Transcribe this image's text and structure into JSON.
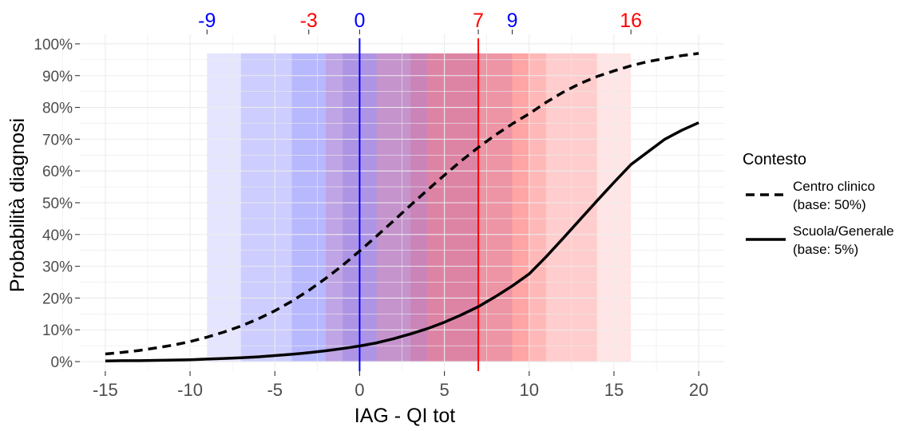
{
  "chart_data": {
    "type": "line",
    "xlabel": "IAG - QI tot",
    "ylabel": "Probabilità diagnosi",
    "xlim": [
      -16.5,
      21.5
    ],
    "ylim": [
      -0.03,
      1.03
    ],
    "xticks": [
      -15,
      -10,
      -5,
      0,
      5,
      10,
      15,
      20
    ],
    "yticks": [
      0,
      0.1,
      0.2,
      0.3,
      0.4,
      0.5,
      0.6,
      0.7,
      0.8,
      0.9,
      1.0
    ],
    "ytick_labels": [
      "0%",
      "10%",
      "20%",
      "30%",
      "40%",
      "50%",
      "60%",
      "70%",
      "80%",
      "90%",
      "100%"
    ],
    "grid": true,
    "colors": {
      "blue": "#0000ff",
      "red": "#ff0000",
      "line": "#000000",
      "grid": "#ebebeb"
    },
    "top_axis": [
      {
        "value": -9,
        "label": "-9",
        "color": "#0000ff"
      },
      {
        "value": -3,
        "label": "-3",
        "color": "#ff0000"
      },
      {
        "value": 0,
        "label": "0",
        "color": "#0000ff"
      },
      {
        "value": 7,
        "label": "7",
        "color": "#ff0000"
      },
      {
        "value": 9,
        "label": "9",
        "color": "#0000ff"
      },
      {
        "value": 16,
        "label": "16",
        "color": "#ff0000"
      }
    ],
    "shaded_bands": [
      {
        "center": 0,
        "ranges": [
          [
            -9,
            9
          ],
          [
            -7,
            7
          ],
          [
            -4,
            4
          ],
          [
            -1,
            1
          ]
        ],
        "color": "#0000ff",
        "opacity": 0.1
      },
      {
        "center": 7,
        "ranges": [
          [
            -2,
            16
          ],
          [
            1,
            14
          ],
          [
            3,
            11
          ],
          [
            4,
            10
          ]
        ],
        "color": "#ff0000",
        "opacity": 0.1
      }
    ],
    "band_top": 0.97,
    "vlines": [
      {
        "x": 0,
        "color": "#0000ff"
      },
      {
        "x": 7,
        "color": "#ff0000"
      }
    ],
    "series": [
      {
        "name": "Centro clinico\n(base: 50%)",
        "style": "dashed",
        "x": [
          -15,
          -14,
          -13,
          -12,
          -11,
          -10,
          -9,
          -8,
          -7,
          -6,
          -5,
          -4,
          -3,
          -2,
          -1,
          0,
          1,
          2,
          3,
          4,
          5,
          6,
          7,
          8,
          9,
          10,
          11,
          12,
          13,
          14,
          15,
          16,
          17,
          18,
          19,
          20
        ],
        "y": [
          0.024,
          0.029,
          0.035,
          0.043,
          0.052,
          0.063,
          0.077,
          0.093,
          0.112,
          0.134,
          0.16,
          0.19,
          0.224,
          0.262,
          0.303,
          0.348,
          0.395,
          0.443,
          0.492,
          0.54,
          0.587,
          0.632,
          0.674,
          0.713,
          0.748,
          0.78,
          0.816,
          0.848,
          0.875,
          0.897,
          0.915,
          0.931,
          0.944,
          0.954,
          0.963,
          0.97
        ]
      },
      {
        "name": "Scuola/Generale\n(base: 5%)",
        "style": "solid",
        "x": [
          -15,
          -14,
          -13,
          -12,
          -11,
          -10,
          -9,
          -8,
          -7,
          -6,
          -5,
          -4,
          -3,
          -2,
          -1,
          0,
          1,
          2,
          3,
          4,
          5,
          6,
          7,
          8,
          9,
          10,
          11,
          12,
          13,
          14,
          15,
          16,
          17,
          18,
          19,
          20
        ],
        "y": [
          0.002,
          0.003,
          0.003,
          0.004,
          0.005,
          0.006,
          0.008,
          0.01,
          0.012,
          0.015,
          0.019,
          0.023,
          0.028,
          0.034,
          0.041,
          0.049,
          0.059,
          0.072,
          0.087,
          0.104,
          0.124,
          0.147,
          0.173,
          0.204,
          0.238,
          0.276,
          0.33,
          0.388,
          0.447,
          0.506,
          0.564,
          0.62,
          0.66,
          0.7,
          0.728,
          0.752
        ]
      }
    ],
    "legend": {
      "title": "Contesto",
      "placement": "right",
      "entries": [
        {
          "line1": "Centro clinico",
          "line2": "(base: 50%)",
          "style": "dashed"
        },
        {
          "line1": "Scuola/Generale",
          "line2": "(base: 5%)",
          "style": "solid"
        }
      ]
    }
  }
}
